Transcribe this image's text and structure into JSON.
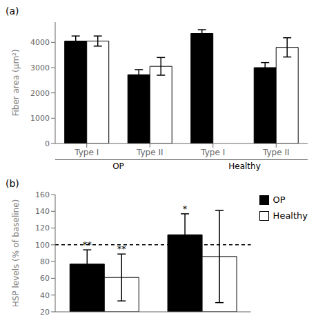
{
  "chart_data": [
    {
      "type": "bar",
      "title": "(a)",
      "categories": [
        "Type I",
        "Type II",
        "Type I",
        "Type II"
      ],
      "annotations": [
        "OP",
        "Healthy"
      ],
      "ylabel": "Fiber area (μm²)",
      "ylim": [
        0,
        4800
      ],
      "yticks": [
        0,
        1000,
        2000,
        3000,
        4000
      ],
      "edge_color": "#000000",
      "series": [
        {
          "color": "#000000",
          "values": [
            4050,
            2720,
            4350,
            3000
          ],
          "errors": [
            200,
            200,
            150,
            200
          ]
        },
        {
          "color": "#ffffff",
          "values": [
            4050,
            3050,
            null,
            3800
          ],
          "errors": [
            200,
            350,
            null,
            380
          ]
        }
      ]
    },
    {
      "type": "bar",
      "title": "(b)",
      "categories": [
        null,
        null
      ],
      "ylabel": "HSP levels (% of baseline)",
      "ylim": [
        20,
        160
      ],
      "yticks": [
        20,
        40,
        60,
        80,
        100,
        120,
        140,
        160
      ],
      "reference_line": 100,
      "line_style": "dashed",
      "legend": "right",
      "tick_labels": "y",
      "edge_color": "#000000",
      "series": [
        {
          "name": "OP",
          "color": "#000000",
          "values": [
            77,
            112
          ],
          "errors": [
            17,
            25
          ],
          "annotations": [
            "**",
            "*"
          ]
        },
        {
          "name": "Healthy",
          "color": "#ffffff",
          "values": [
            61,
            86
          ],
          "errors": [
            28,
            55
          ],
          "annotations": [
            "**",
            null
          ]
        }
      ]
    }
  ]
}
